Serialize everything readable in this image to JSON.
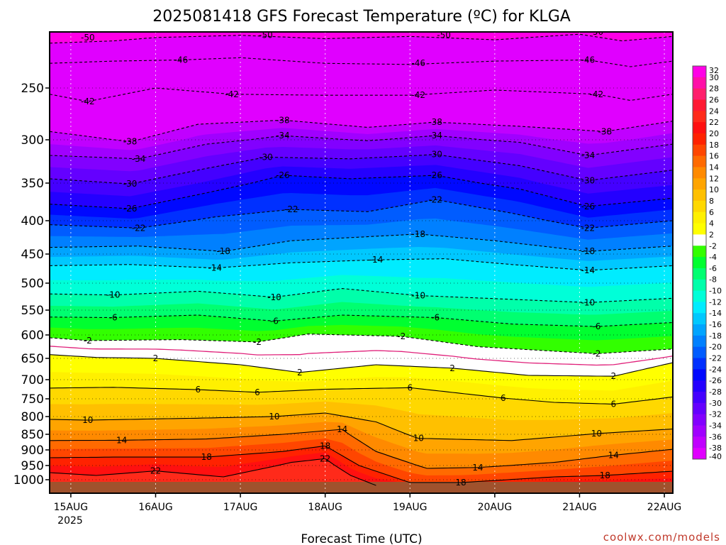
{
  "chart_data": {
    "type": "heatmap",
    "title": "2025081418 GFS Forecast Temperature (ºC) for KLGA",
    "xlabel": "Forecast Time (UTC)",
    "ylabel": "",
    "x_ticks": [
      "15AUG",
      "16AUG",
      "17AUG",
      "18AUG",
      "19AUG",
      "20AUG",
      "21AUG",
      "22AUG"
    ],
    "x_year": "2025",
    "x_range_days": [
      14.75,
      22.1
    ],
    "y_ticks": [
      250,
      300,
      350,
      400,
      450,
      500,
      550,
      600,
      650,
      700,
      750,
      800,
      850,
      900,
      950,
      1000
    ],
    "y_range_hpa": [
      1020,
      200
    ],
    "y_scale": "pressure (log-like)",
    "colorbar_ticks": [
      32,
      30,
      28,
      26,
      24,
      22,
      20,
      18,
      16,
      14,
      12,
      10,
      8,
      6,
      4,
      2,
      -2,
      -4,
      -6,
      -8,
      -10,
      -12,
      -14,
      -16,
      -18,
      -20,
      -22,
      -24,
      -26,
      -28,
      -30,
      -32,
      -34,
      -36,
      -38,
      -40
    ],
    "colorbar_colors": [
      "#ff00e6",
      "#ff0fa8",
      "#ff1e6c",
      "#ff1932",
      "#ff2a1a",
      "#ff1010",
      "#ff2200",
      "#ff4600",
      "#ff6a00",
      "#ff8a00",
      "#ffa400",
      "#ffc000",
      "#ffd800",
      "#fff000",
      "#ffff00",
      "#ffffff",
      "#32ff00",
      "#00ff30",
      "#00ff70",
      "#00ffaa",
      "#00ffd8",
      "#00ecff",
      "#00c8ff",
      "#00a4ff",
      "#0080ff",
      "#005cff",
      "#0030ff",
      "#0008ff",
      "#2400ff",
      "#4400ff",
      "#6400ff",
      "#8200ff",
      "#a000ff",
      "#c000ff",
      "#e000ff"
    ],
    "surface_color": "#a0522d",
    "freezing_line_color": "#e0207a",
    "contour_labels": [
      {
        "value": -50,
        "day": 15.2,
        "hpa": 205
      },
      {
        "value": -50,
        "day": 17.3,
        "hpa": 203
      },
      {
        "value": -50,
        "day": 19.4,
        "hpa": 203
      },
      {
        "value": -50,
        "day": 21.2,
        "hpa": 200
      },
      {
        "value": -46,
        "day": 16.3,
        "hpa": 225
      },
      {
        "value": -46,
        "day": 19.1,
        "hpa": 228
      },
      {
        "value": -46,
        "day": 21.1,
        "hpa": 225
      },
      {
        "value": -42,
        "day": 15.2,
        "hpa": 263
      },
      {
        "value": -42,
        "day": 16.9,
        "hpa": 256
      },
      {
        "value": -42,
        "day": 19.1,
        "hpa": 257
      },
      {
        "value": -42,
        "day": 21.2,
        "hpa": 256
      },
      {
        "value": -38,
        "day": 15.7,
        "hpa": 302
      },
      {
        "value": -38,
        "day": 17.5,
        "hpa": 281
      },
      {
        "value": -38,
        "day": 19.3,
        "hpa": 283
      },
      {
        "value": -38,
        "day": 21.3,
        "hpa": 292
      },
      {
        "value": -34,
        "day": 15.8,
        "hpa": 322
      },
      {
        "value": -34,
        "day": 17.5,
        "hpa": 296
      },
      {
        "value": -34,
        "day": 19.3,
        "hpa": 296
      },
      {
        "value": -34,
        "day": 21.1,
        "hpa": 318
      },
      {
        "value": -30,
        "day": 15.7,
        "hpa": 351
      },
      {
        "value": -30,
        "day": 17.3,
        "hpa": 320
      },
      {
        "value": -30,
        "day": 19.3,
        "hpa": 317
      },
      {
        "value": -30,
        "day": 21.1,
        "hpa": 347
      },
      {
        "value": -26,
        "day": 15.7,
        "hpa": 384
      },
      {
        "value": -26,
        "day": 17.5,
        "hpa": 341
      },
      {
        "value": -26,
        "day": 19.3,
        "hpa": 341
      },
      {
        "value": -26,
        "day": 21.1,
        "hpa": 381
      },
      {
        "value": -22,
        "day": 15.8,
        "hpa": 411
      },
      {
        "value": -22,
        "day": 17.6,
        "hpa": 385
      },
      {
        "value": -22,
        "day": 19.3,
        "hpa": 372
      },
      {
        "value": -22,
        "day": 21.1,
        "hpa": 411
      },
      {
        "value": -18,
        "day": 16.8,
        "hpa": 446
      },
      {
        "value": -18,
        "day": 19.1,
        "hpa": 420
      },
      {
        "value": -18,
        "day": 21.1,
        "hpa": 446
      },
      {
        "value": -14,
        "day": 16.7,
        "hpa": 474
      },
      {
        "value": -14,
        "day": 18.6,
        "hpa": 460
      },
      {
        "value": -14,
        "day": 21.1,
        "hpa": 478
      },
      {
        "value": -10,
        "day": 15.5,
        "hpa": 522
      },
      {
        "value": -10,
        "day": 17.4,
        "hpa": 526
      },
      {
        "value": -10,
        "day": 19.1,
        "hpa": 523
      },
      {
        "value": -10,
        "day": 21.1,
        "hpa": 536
      },
      {
        "value": -6,
        "day": 15.5,
        "hpa": 565
      },
      {
        "value": -6,
        "day": 17.4,
        "hpa": 572
      },
      {
        "value": -6,
        "day": 19.3,
        "hpa": 565
      },
      {
        "value": -6,
        "day": 21.2,
        "hpa": 583
      },
      {
        "value": -2,
        "day": 15.2,
        "hpa": 612
      },
      {
        "value": -2,
        "day": 17.2,
        "hpa": 615
      },
      {
        "value": -2,
        "day": 18.9,
        "hpa": 603
      },
      {
        "value": -2,
        "day": 21.2,
        "hpa": 640
      },
      {
        "value": 2,
        "day": 16.0,
        "hpa": 650
      },
      {
        "value": 2,
        "day": 17.7,
        "hpa": 683
      },
      {
        "value": 2,
        "day": 19.5,
        "hpa": 673
      },
      {
        "value": 2,
        "day": 21.4,
        "hpa": 692
      },
      {
        "value": 6,
        "day": 16.5,
        "hpa": 726
      },
      {
        "value": 6,
        "day": 17.2,
        "hpa": 733
      },
      {
        "value": 6,
        "day": 19.0,
        "hpa": 721
      },
      {
        "value": 6,
        "day": 20.1,
        "hpa": 748
      },
      {
        "value": 6,
        "day": 21.4,
        "hpa": 765
      },
      {
        "value": 10,
        "day": 15.2,
        "hpa": 810
      },
      {
        "value": 10,
        "day": 17.4,
        "hpa": 800
      },
      {
        "value": 10,
        "day": 19.1,
        "hpa": 863
      },
      {
        "value": 10,
        "day": 21.2,
        "hpa": 848
      },
      {
        "value": 14,
        "day": 15.6,
        "hpa": 869
      },
      {
        "value": 14,
        "day": 18.2,
        "hpa": 836
      },
      {
        "value": 14,
        "day": 19.8,
        "hpa": 957
      },
      {
        "value": 14,
        "day": 21.4,
        "hpa": 917
      },
      {
        "value": 18,
        "day": 16.6,
        "hpa": 923
      },
      {
        "value": 18,
        "day": 18.0,
        "hpa": 887
      },
      {
        "value": 18,
        "day": 19.6,
        "hpa": 1010
      },
      {
        "value": 18,
        "day": 21.3,
        "hpa": 985
      },
      {
        "value": 22,
        "day": 16.0,
        "hpa": 969
      },
      {
        "value": 22,
        "day": 18.0,
        "hpa": 928
      }
    ],
    "isotherms": [
      {
        "value": -50,
        "pts": [
          [
            14.75,
            210
          ],
          [
            15.5,
            208
          ],
          [
            16.0,
            205
          ],
          [
            17.0,
            203
          ],
          [
            18.0,
            206
          ],
          [
            19.0,
            204
          ],
          [
            20.0,
            207
          ],
          [
            21.0,
            202
          ],
          [
            21.5,
            208
          ],
          [
            22.1,
            204
          ]
        ]
      },
      {
        "value": -46,
        "pts": [
          [
            14.75,
            228
          ],
          [
            15.5,
            226
          ],
          [
            16.3,
            225
          ],
          [
            17.0,
            223
          ],
          [
            18.0,
            228
          ],
          [
            19.0,
            229
          ],
          [
            20.0,
            226
          ],
          [
            21.1,
            225
          ],
          [
            21.6,
            231
          ],
          [
            22.1,
            226
          ]
        ]
      },
      {
        "value": -42,
        "pts": [
          [
            14.75,
            256
          ],
          [
            15.2,
            263
          ],
          [
            16.0,
            250
          ],
          [
            16.9,
            256
          ],
          [
            18.0,
            257
          ],
          [
            19.0,
            257
          ],
          [
            20.0,
            252
          ],
          [
            21.2,
            256
          ],
          [
            21.6,
            262
          ],
          [
            22.1,
            256
          ]
        ]
      },
      {
        "value": -38,
        "pts": [
          [
            14.75,
            292
          ],
          [
            15.7,
            302
          ],
          [
            16.5,
            285
          ],
          [
            17.5,
            281
          ],
          [
            18.5,
            288
          ],
          [
            19.3,
            283
          ],
          [
            20.3,
            287
          ],
          [
            21.3,
            292
          ],
          [
            22.1,
            282
          ]
        ]
      },
      {
        "value": -34,
        "pts": [
          [
            14.75,
            318
          ],
          [
            15.8,
            322
          ],
          [
            16.6,
            305
          ],
          [
            17.5,
            296
          ],
          [
            18.5,
            301
          ],
          [
            19.3,
            296
          ],
          [
            20.3,
            303
          ],
          [
            21.1,
            318
          ],
          [
            22.1,
            305
          ]
        ]
      },
      {
        "value": -30,
        "pts": [
          [
            14.75,
            345
          ],
          [
            15.7,
            351
          ],
          [
            16.6,
            333
          ],
          [
            17.3,
            320
          ],
          [
            18.3,
            322
          ],
          [
            19.3,
            317
          ],
          [
            20.3,
            330
          ],
          [
            21.1,
            347
          ],
          [
            22.1,
            335
          ]
        ]
      },
      {
        "value": -26,
        "pts": [
          [
            14.75,
            378
          ],
          [
            15.7,
            384
          ],
          [
            16.6,
            363
          ],
          [
            17.5,
            341
          ],
          [
            18.3,
            345
          ],
          [
            19.3,
            341
          ],
          [
            20.3,
            358
          ],
          [
            21.1,
            381
          ],
          [
            22.1,
            370
          ]
        ]
      },
      {
        "value": -22,
        "pts": [
          [
            14.75,
            406
          ],
          [
            15.8,
            411
          ],
          [
            16.7,
            395
          ],
          [
            17.6,
            385
          ],
          [
            18.5,
            388
          ],
          [
            19.3,
            372
          ],
          [
            20.2,
            390
          ],
          [
            21.1,
            411
          ],
          [
            22.1,
            400
          ]
        ]
      },
      {
        "value": -18,
        "pts": [
          [
            14.75,
            440
          ],
          [
            15.8,
            438
          ],
          [
            16.8,
            446
          ],
          [
            17.6,
            430
          ],
          [
            18.5,
            424
          ],
          [
            19.1,
            420
          ],
          [
            20.0,
            430
          ],
          [
            21.1,
            446
          ],
          [
            22.1,
            438
          ]
        ]
      },
      {
        "value": -14,
        "pts": [
          [
            14.75,
            470
          ],
          [
            15.7,
            468
          ],
          [
            16.7,
            474
          ],
          [
            17.6,
            465
          ],
          [
            18.6,
            460
          ],
          [
            19.4,
            458
          ],
          [
            20.2,
            468
          ],
          [
            21.1,
            478
          ],
          [
            22.1,
            470
          ]
        ]
      },
      {
        "value": -10,
        "pts": [
          [
            14.75,
            520
          ],
          [
            15.5,
            522
          ],
          [
            16.5,
            515
          ],
          [
            17.4,
            526
          ],
          [
            18.2,
            510
          ],
          [
            19.1,
            523
          ],
          [
            20.2,
            530
          ],
          [
            21.1,
            536
          ],
          [
            22.1,
            528
          ]
        ]
      },
      {
        "value": -6,
        "pts": [
          [
            14.75,
            564
          ],
          [
            15.5,
            565
          ],
          [
            16.5,
            560
          ],
          [
            17.4,
            572
          ],
          [
            18.2,
            560
          ],
          [
            19.3,
            565
          ],
          [
            20.2,
            578
          ],
          [
            21.2,
            583
          ],
          [
            22.1,
            575
          ]
        ]
      },
      {
        "value": -2,
        "pts": [
          [
            14.75,
            606
          ],
          [
            15.2,
            612
          ],
          [
            16.3,
            610
          ],
          [
            17.2,
            615
          ],
          [
            17.8,
            598
          ],
          [
            18.9,
            603
          ],
          [
            19.8,
            625
          ],
          [
            21.2,
            640
          ],
          [
            22.1,
            630
          ]
        ]
      },
      {
        "value": 2,
        "pts": [
          [
            14.75,
            642
          ],
          [
            15.3,
            648
          ],
          [
            16.0,
            650
          ],
          [
            17.0,
            665
          ],
          [
            17.7,
            683
          ],
          [
            18.6,
            665
          ],
          [
            19.5,
            673
          ],
          [
            20.4,
            690
          ],
          [
            21.4,
            692
          ],
          [
            22.1,
            660
          ]
        ]
      },
      {
        "value": 6,
        "pts": [
          [
            14.75,
            722
          ],
          [
            15.5,
            720
          ],
          [
            16.5,
            726
          ],
          [
            17.2,
            733
          ],
          [
            18.0,
            725
          ],
          [
            19.0,
            721
          ],
          [
            20.1,
            748
          ],
          [
            20.7,
            760
          ],
          [
            21.4,
            765
          ],
          [
            22.1,
            745
          ]
        ]
      },
      {
        "value": 10,
        "pts": [
          [
            14.75,
            808
          ],
          [
            15.2,
            810
          ],
          [
            16.4,
            805
          ],
          [
            17.4,
            800
          ],
          [
            18.0,
            790
          ],
          [
            18.6,
            815
          ],
          [
            19.1,
            863
          ],
          [
            20.2,
            870
          ],
          [
            21.2,
            848
          ],
          [
            22.1,
            835
          ]
        ]
      },
      {
        "value": 14,
        "pts": [
          [
            14.75,
            870
          ],
          [
            15.6,
            869
          ],
          [
            16.6,
            865
          ],
          [
            17.5,
            850
          ],
          [
            18.2,
            836
          ],
          [
            18.6,
            905
          ],
          [
            19.2,
            960
          ],
          [
            19.8,
            957
          ],
          [
            20.7,
            940
          ],
          [
            21.4,
            917
          ],
          [
            22.1,
            898
          ]
        ]
      },
      {
        "value": 18,
        "pts": [
          [
            14.75,
            925
          ],
          [
            15.5,
            923
          ],
          [
            16.6,
            923
          ],
          [
            17.5,
            905
          ],
          [
            18.0,
            887
          ],
          [
            18.4,
            950
          ],
          [
            19.0,
            1010
          ],
          [
            19.6,
            1010
          ],
          [
            20.7,
            990
          ],
          [
            21.3,
            985
          ],
          [
            22.1,
            970
          ]
        ]
      },
      {
        "value": 22,
        "pts": [
          [
            14.75,
            975
          ],
          [
            15.3,
            985
          ],
          [
            16.0,
            969
          ],
          [
            16.8,
            990
          ],
          [
            17.6,
            940
          ],
          [
            18.0,
            928
          ],
          [
            18.3,
            985
          ],
          [
            18.6,
            1020
          ]
        ]
      }
    ],
    "gridlines": "dotted",
    "legend": "colorbar right"
  },
  "credit": "coolwx.com/models"
}
